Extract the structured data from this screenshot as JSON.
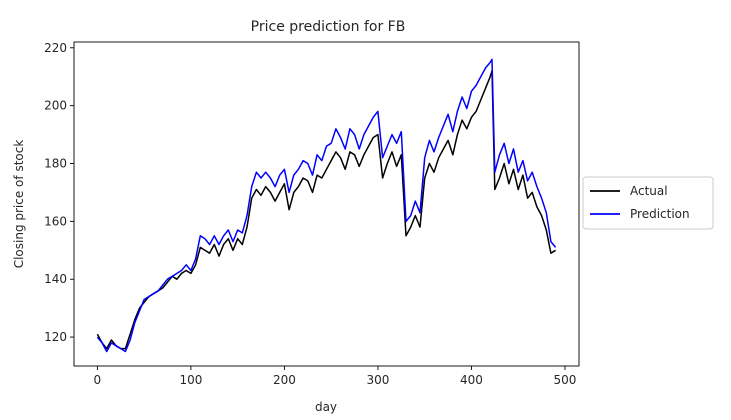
{
  "chart_data": {
    "type": "line",
    "title": "Price prediction for FB",
    "xlabel": "day",
    "ylabel": "Closing price of stock",
    "xlim": [
      -25,
      515
    ],
    "ylim": [
      110,
      222
    ],
    "xticks": [
      0,
      100,
      200,
      300,
      400,
      500
    ],
    "yticks": [
      120,
      140,
      160,
      180,
      200,
      220
    ],
    "legend_position": "outside-right",
    "grid": false,
    "series": [
      {
        "name": "Actual",
        "color": "#000000",
        "x": [
          0,
          5,
          10,
          15,
          20,
          25,
          30,
          35,
          40,
          45,
          50,
          55,
          60,
          65,
          70,
          75,
          80,
          85,
          90,
          95,
          100,
          105,
          110,
          115,
          120,
          125,
          130,
          135,
          140,
          145,
          150,
          155,
          160,
          165,
          170,
          175,
          180,
          185,
          190,
          195,
          200,
          205,
          210,
          215,
          220,
          225,
          230,
          235,
          240,
          245,
          250,
          255,
          260,
          265,
          270,
          275,
          280,
          285,
          290,
          295,
          300,
          305,
          310,
          315,
          320,
          325,
          330,
          335,
          340,
          345,
          350,
          355,
          360,
          365,
          370,
          375,
          380,
          385,
          390,
          395,
          400,
          405,
          410,
          415,
          420,
          422,
          425,
          430,
          435,
          440,
          445,
          450,
          455,
          460,
          465,
          470,
          475,
          480,
          485,
          490
        ],
        "y": [
          121,
          118,
          116,
          119,
          117,
          116,
          116,
          121,
          126,
          130,
          132,
          134,
          135,
          136,
          137,
          139,
          141,
          140,
          142,
          143,
          142,
          145,
          151,
          150,
          149,
          152,
          148,
          152,
          154,
          150,
          154,
          152,
          158,
          168,
          171,
          169,
          172,
          170,
          167,
          170,
          173,
          164,
          170,
          172,
          175,
          174,
          170,
          176,
          175,
          178,
          181,
          184,
          182,
          178,
          184,
          183,
          179,
          183,
          186,
          189,
          190,
          175,
          180,
          184,
          179,
          183,
          155,
          158,
          162,
          158,
          175,
          180,
          177,
          182,
          185,
          188,
          183,
          190,
          195,
          192,
          196,
          198,
          202,
          206,
          210,
          212,
          171,
          175,
          180,
          173,
          178,
          171,
          176,
          168,
          170,
          165,
          162,
          157,
          149,
          150
        ]
      },
      {
        "name": "Prediction",
        "color": "#0000ff",
        "x": [
          0,
          5,
          10,
          15,
          20,
          25,
          30,
          35,
          40,
          45,
          50,
          55,
          60,
          65,
          70,
          75,
          80,
          85,
          90,
          95,
          100,
          105,
          110,
          115,
          120,
          125,
          130,
          135,
          140,
          145,
          150,
          155,
          160,
          165,
          170,
          175,
          180,
          185,
          190,
          195,
          200,
          205,
          210,
          215,
          220,
          225,
          230,
          235,
          240,
          245,
          250,
          255,
          260,
          265,
          270,
          275,
          280,
          285,
          290,
          295,
          300,
          305,
          310,
          315,
          320,
          325,
          330,
          335,
          340,
          345,
          350,
          355,
          360,
          365,
          370,
          375,
          380,
          385,
          390,
          395,
          400,
          405,
          410,
          415,
          420,
          422,
          425,
          430,
          435,
          440,
          445,
          450,
          455,
          460,
          465,
          470,
          475,
          480,
          485,
          490
        ],
        "y": [
          120,
          118,
          115,
          118,
          117,
          116,
          115,
          119,
          125,
          129,
          133,
          134,
          135,
          136,
          138,
          140,
          141,
          142,
          143,
          145,
          143,
          147,
          155,
          154,
          152,
          155,
          152,
          155,
          157,
          153,
          157,
          156,
          162,
          172,
          177,
          175,
          177,
          175,
          172,
          176,
          178,
          170,
          176,
          178,
          181,
          180,
          176,
          183,
          181,
          186,
          187,
          192,
          189,
          185,
          192,
          190,
          185,
          190,
          193,
          196,
          198,
          182,
          186,
          190,
          187,
          191,
          160,
          162,
          167,
          163,
          182,
          188,
          184,
          189,
          193,
          197,
          191,
          198,
          203,
          199,
          205,
          207,
          210,
          213,
          215,
          216,
          177,
          183,
          187,
          180,
          185,
          177,
          181,
          174,
          177,
          172,
          168,
          163,
          153,
          151
        ]
      }
    ]
  }
}
